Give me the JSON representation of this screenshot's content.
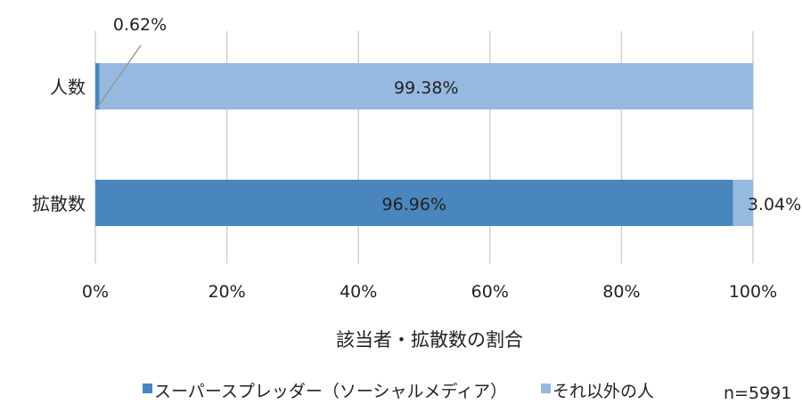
{
  "chart_data": {
    "type": "bar",
    "orientation": "horizontal",
    "stacked": true,
    "categories": [
      "人数",
      "拡散数"
    ],
    "series": [
      {
        "name": "スーパースプレッダー（ソーシャルメディア）",
        "values": [
          0.62,
          96.96
        ],
        "labels": [
          "0.62%",
          "96.96%"
        ],
        "color": "#4a86be"
      },
      {
        "name": "それ以外の人",
        "values": [
          99.38,
          3.04
        ],
        "labels": [
          "99.38%",
          "3.04%"
        ],
        "color": "#96b9df"
      }
    ],
    "xlabel": "該当者・拡散数の割合",
    "xlim": [
      0,
      100
    ],
    "xticks": [
      "0%",
      "20%",
      "40%",
      "60%",
      "80%",
      "100%"
    ],
    "grid": true,
    "legend_position": "bottom",
    "note": "n=5991"
  }
}
